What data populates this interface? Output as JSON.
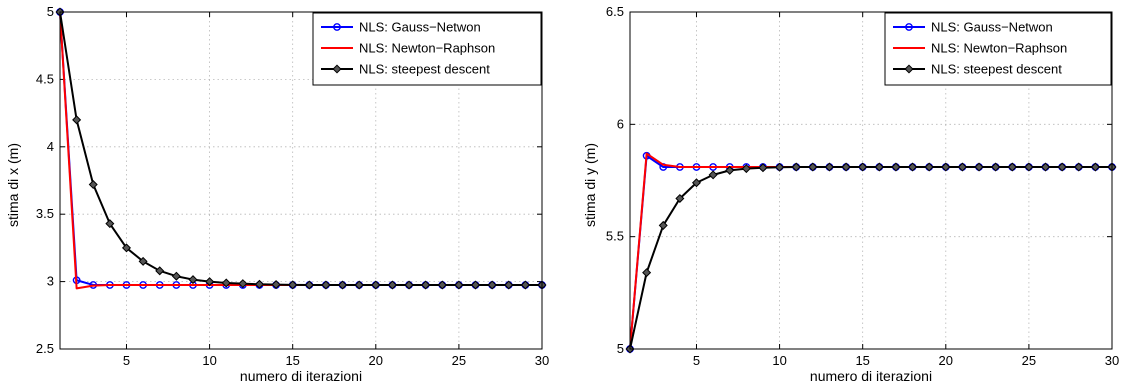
{
  "chart_data": [
    {
      "type": "line",
      "xlabel": "numero di iterazioni",
      "ylabel": "stima di x (m)",
      "xlim": [
        1,
        30
      ],
      "ylim": [
        2.5,
        5
      ],
      "xticks": [
        5,
        10,
        15,
        20,
        25,
        30
      ],
      "yticks": [
        2.5,
        3,
        3.5,
        4,
        4.5,
        5
      ],
      "grid": true,
      "legend_position": "top-right",
      "x": [
        1,
        2,
        3,
        4,
        5,
        6,
        7,
        8,
        9,
        10,
        11,
        12,
        13,
        14,
        15,
        16,
        17,
        18,
        19,
        20,
        21,
        22,
        23,
        24,
        25,
        26,
        27,
        28,
        29,
        30
      ],
      "series": [
        {
          "name": "NLS: Gauss−Netwon",
          "color": "#0000ff",
          "marker": "circle",
          "values": [
            5,
            3.01,
            2.975,
            2.975,
            2.975,
            2.975,
            2.975,
            2.975,
            2.975,
            2.975,
            2.975,
            2.975,
            2.975,
            2.975,
            2.975,
            2.975,
            2.975,
            2.975,
            2.975,
            2.975,
            2.975,
            2.975,
            2.975,
            2.975,
            2.975,
            2.975,
            2.975,
            2.975,
            2.975,
            2.975
          ]
        },
        {
          "name": "NLS: Newton−Raphson",
          "color": "#ff0000",
          "marker": "none",
          "values": [
            5,
            2.95,
            2.97,
            2.975,
            2.975,
            2.975,
            2.975,
            2.975,
            2.975,
            2.975,
            2.975,
            2.975,
            2.975,
            2.975,
            2.975,
            2.975,
            2.975,
            2.975,
            2.975,
            2.975,
            2.975,
            2.975,
            2.975,
            2.975,
            2.975,
            2.975,
            2.975,
            2.975,
            2.975,
            2.975
          ]
        },
        {
          "name": "NLS: steepest descent",
          "color": "#000000",
          "marker": "diamond",
          "values": [
            5,
            4.2,
            3.72,
            3.43,
            3.25,
            3.15,
            3.08,
            3.04,
            3.015,
            3.0,
            2.99,
            2.985,
            2.98,
            2.978,
            2.976,
            2.975,
            2.975,
            2.975,
            2.975,
            2.975,
            2.975,
            2.975,
            2.975,
            2.975,
            2.975,
            2.975,
            2.975,
            2.975,
            2.975,
            2.975
          ]
        }
      ]
    },
    {
      "type": "line",
      "xlabel": "numero di iterazioni",
      "ylabel": "stima di y (m)",
      "xlim": [
        1,
        30
      ],
      "ylim": [
        5,
        6.5
      ],
      "xticks": [
        5,
        10,
        15,
        20,
        25,
        30
      ],
      "yticks": [
        5,
        5.5,
        6,
        6.5
      ],
      "grid": true,
      "legend_position": "top-right",
      "x": [
        1,
        2,
        3,
        4,
        5,
        6,
        7,
        8,
        9,
        10,
        11,
        12,
        13,
        14,
        15,
        16,
        17,
        18,
        19,
        20,
        21,
        22,
        23,
        24,
        25,
        26,
        27,
        28,
        29,
        30
      ],
      "series": [
        {
          "name": "NLS: Gauss−Netwon",
          "color": "#0000ff",
          "marker": "circle",
          "values": [
            5,
            5.86,
            5.81,
            5.81,
            5.81,
            5.81,
            5.81,
            5.81,
            5.81,
            5.81,
            5.81,
            5.81,
            5.81,
            5.81,
            5.81,
            5.81,
            5.81,
            5.81,
            5.81,
            5.81,
            5.81,
            5.81,
            5.81,
            5.81,
            5.81,
            5.81,
            5.81,
            5.81,
            5.81,
            5.81
          ]
        },
        {
          "name": "NLS: Newton−Raphson",
          "color": "#ff0000",
          "marker": "none",
          "values": [
            5,
            5.87,
            5.82,
            5.81,
            5.81,
            5.81,
            5.81,
            5.81,
            5.81,
            5.81,
            5.81,
            5.81,
            5.81,
            5.81,
            5.81,
            5.81,
            5.81,
            5.81,
            5.81,
            5.81,
            5.81,
            5.81,
            5.81,
            5.81,
            5.81,
            5.81,
            5.81,
            5.81,
            5.81,
            5.81
          ]
        },
        {
          "name": "NLS: steepest descent",
          "color": "#000000",
          "marker": "diamond",
          "values": [
            5,
            5.34,
            5.55,
            5.67,
            5.74,
            5.775,
            5.795,
            5.803,
            5.807,
            5.809,
            5.81,
            5.81,
            5.81,
            5.81,
            5.81,
            5.81,
            5.81,
            5.81,
            5.81,
            5.81,
            5.81,
            5.81,
            5.81,
            5.81,
            5.81,
            5.81,
            5.81,
            5.81,
            5.81,
            5.81
          ]
        }
      ]
    }
  ]
}
